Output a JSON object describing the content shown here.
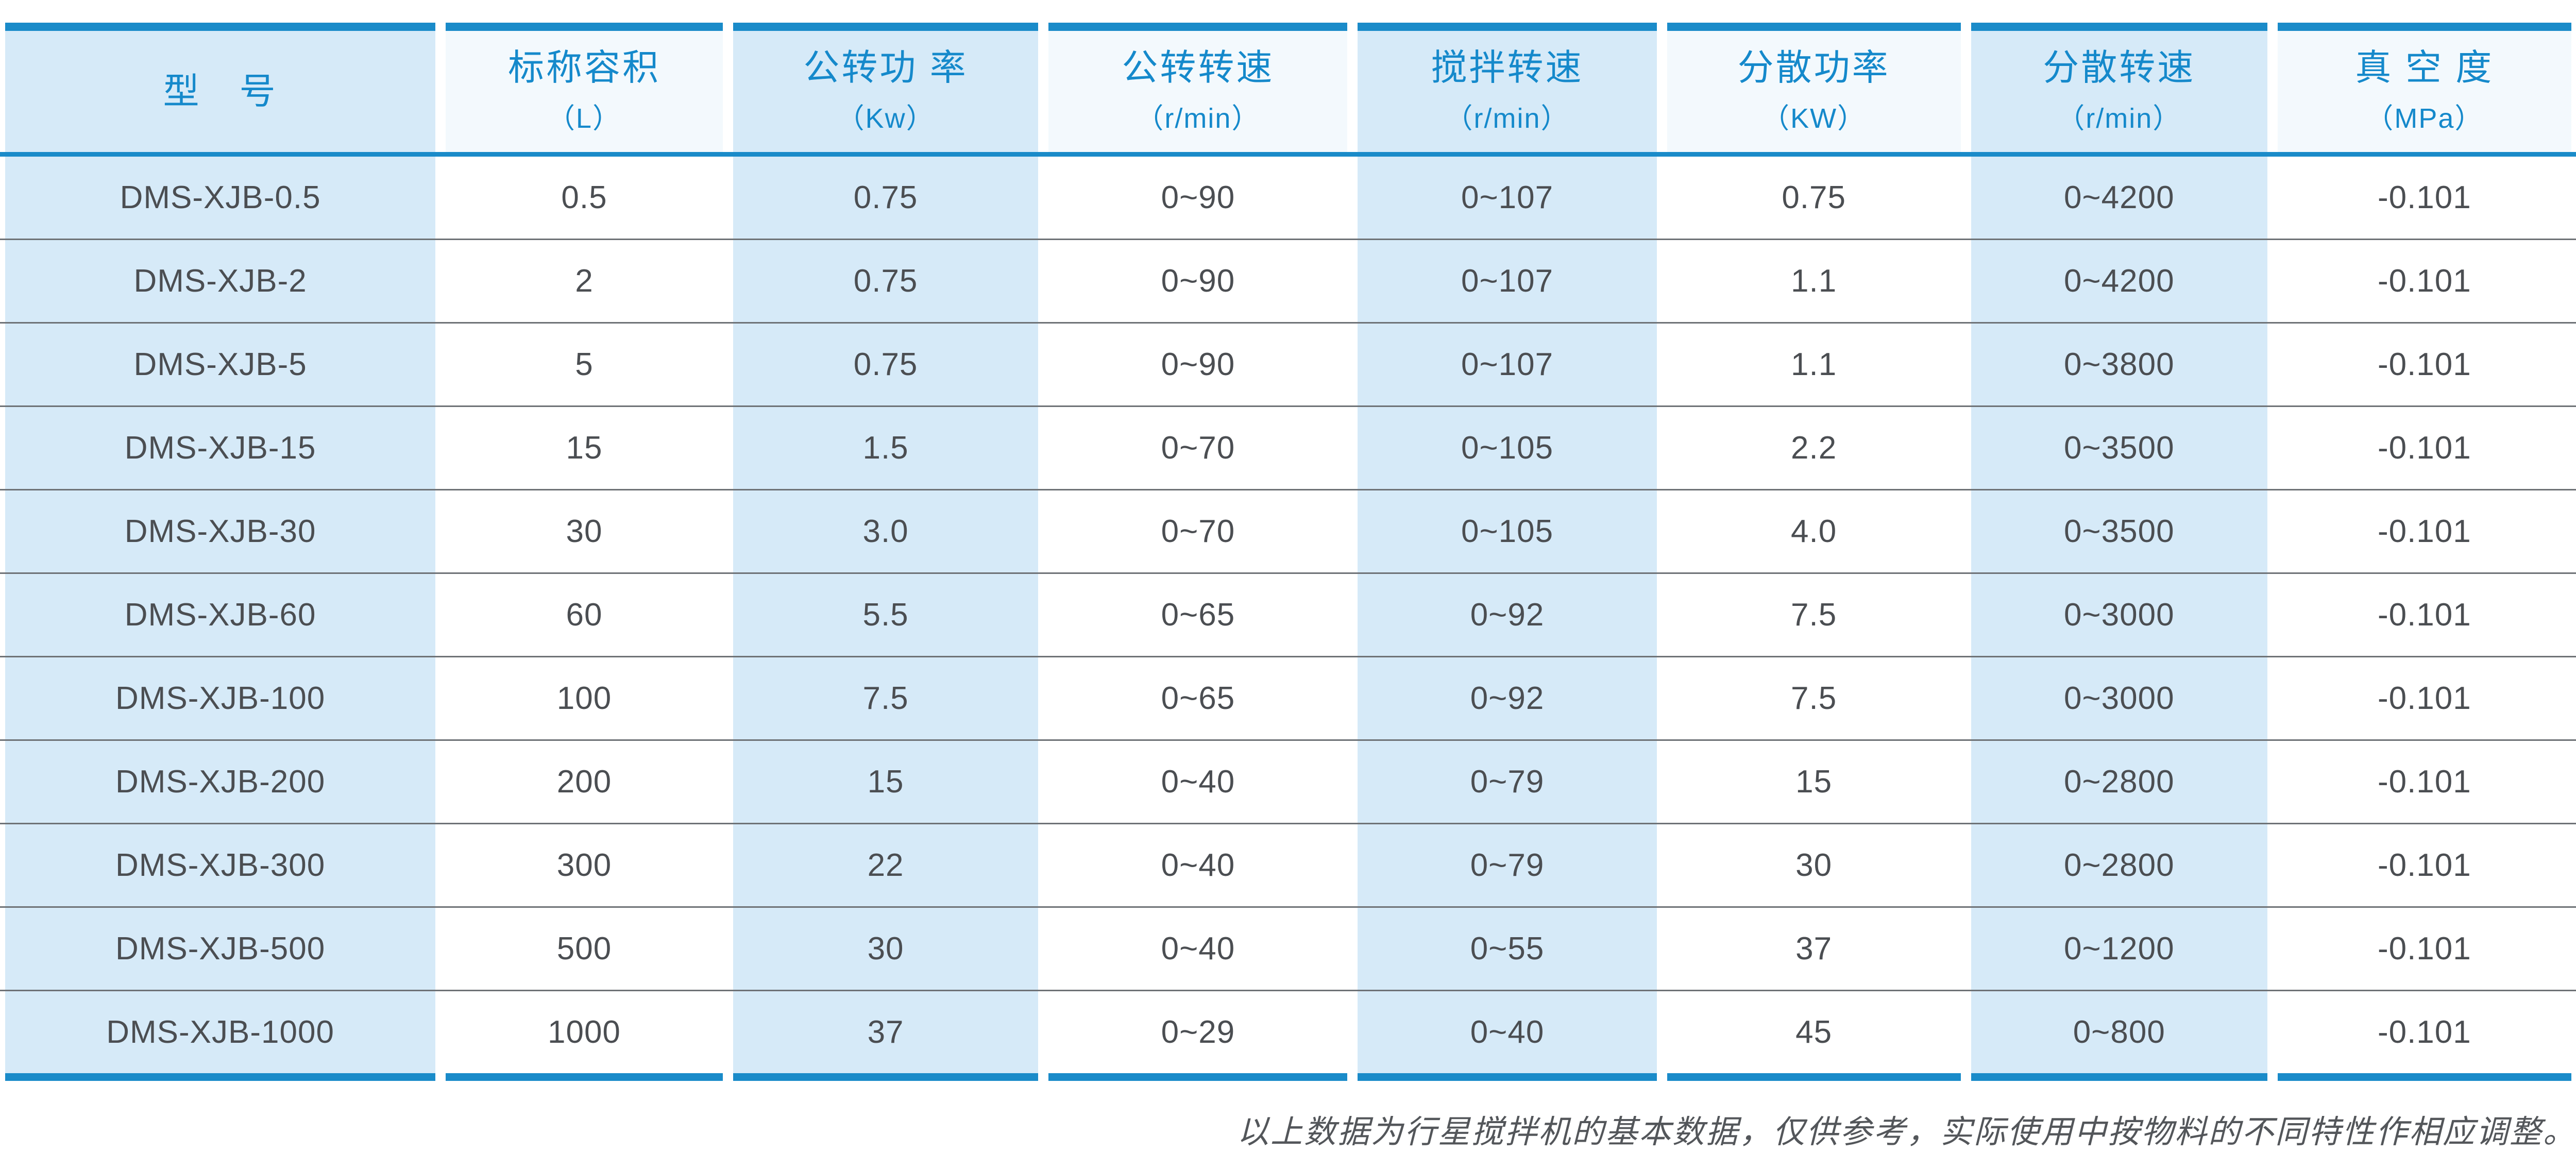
{
  "table": {
    "columns": [
      {
        "label": "型　号",
        "sub": ""
      },
      {
        "label": "标称容积",
        "sub": "（L）"
      },
      {
        "label": "公转功 率",
        "sub": "（Kw）"
      },
      {
        "label": "公转转速",
        "sub": "（r/min）"
      },
      {
        "label": "搅拌转速",
        "sub": "（r/min）"
      },
      {
        "label": "分散功率",
        "sub": "（KW）"
      },
      {
        "label": "分散转速",
        "sub": "（r/min）"
      },
      {
        "label": "真 空 度",
        "sub": "（MPa）"
      }
    ],
    "rows": [
      {
        "cells": [
          "DMS-XJB-0.5",
          "0.5",
          "0.75",
          "0~90",
          "0~107",
          "0.75",
          "0~4200",
          "-0.101"
        ]
      },
      {
        "cells": [
          "DMS-XJB-2",
          "2",
          "0.75",
          "0~90",
          "0~107",
          "1.1",
          "0~4200",
          "-0.101"
        ]
      },
      {
        "cells": [
          "DMS-XJB-5",
          "5",
          "0.75",
          "0~90",
          "0~107",
          "1.1",
          "0~3800",
          "-0.101"
        ]
      },
      {
        "cells": [
          "DMS-XJB-15",
          "15",
          "1.5",
          "0~70",
          "0~105",
          "2.2",
          "0~3500",
          "-0.101"
        ]
      },
      {
        "cells": [
          "DMS-XJB-30",
          "30",
          "3.0",
          "0~70",
          "0~105",
          "4.0",
          "0~3500",
          "-0.101"
        ]
      },
      {
        "cells": [
          "DMS-XJB-60",
          "60",
          "5.5",
          "0~65",
          "0~92",
          "7.5",
          "0~3000",
          "-0.101"
        ]
      },
      {
        "cells": [
          "DMS-XJB-100",
          "100",
          "7.5",
          "0~65",
          "0~92",
          "7.5",
          "0~3000",
          "-0.101"
        ]
      },
      {
        "cells": [
          "DMS-XJB-200",
          "200",
          "15",
          "0~40",
          "0~79",
          "15",
          "0~2800",
          "-0.101"
        ]
      },
      {
        "cells": [
          "DMS-XJB-300",
          "300",
          "22",
          "0~40",
          "0~79",
          "30",
          "0~2800",
          "-0.101"
        ]
      },
      {
        "cells": [
          "DMS-XJB-500",
          "500",
          "30",
          "0~40",
          "0~55",
          "37",
          "0~1200",
          "-0.101"
        ]
      },
      {
        "cells": [
          "DMS-XJB-1000",
          "1000",
          "37",
          "0~29",
          "0~40",
          "45",
          "0~800",
          "-0.101"
        ]
      }
    ]
  },
  "footer": {
    "note": "以上数据为行星搅拌机的基本数据，仅供参考，实际使用中按物料的不同特性作相应调整。"
  },
  "colors": {
    "accent_blue": "#1a8bc9",
    "header_text_blue": "#1589cb",
    "light_blue_bg": "#d6eaf8",
    "header_even_bg": "#f3f9fd",
    "body_text": "#4b4e52",
    "separator_gray": "#6e7276",
    "note_text": "#53565a"
  }
}
